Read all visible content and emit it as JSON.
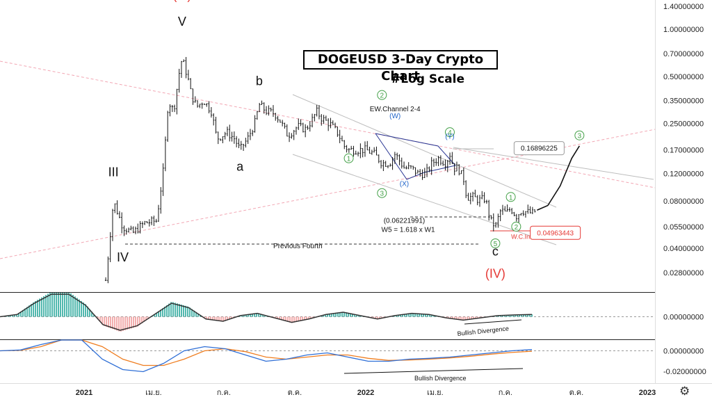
{
  "chart_data": {
    "type": "candlestick",
    "title": "DOGEUSD 3-Day Crypto Chart",
    "subtitle": "#Log Scale",
    "price_axis": {
      "scale": "log",
      "ticks": [
        "1.40000000",
        "1.00000000",
        "0.70000000",
        "0.50000000",
        "0.35000000",
        "0.25000000",
        "0.17000000",
        "0.12000000",
        "0.08000000",
        "0.05500000",
        "0.04000000",
        "0.02800000"
      ]
    },
    "time_axis": {
      "ticks": [
        "2021",
        "เม.ย.",
        "ก.ค.",
        "ต.ค.",
        "2022",
        "เม.ย.",
        "ก.ค.",
        "ต.ค.",
        "2023"
      ]
    },
    "price_series": [
      {
        "d": "2021-01-29",
        "p": 0.025
      },
      {
        "d": "2021-02-08",
        "p": 0.08
      },
      {
        "d": "2021-02-20",
        "p": 0.055
      },
      {
        "d": "2021-03-05",
        "p": 0.05
      },
      {
        "d": "2021-03-20",
        "p": 0.058
      },
      {
        "d": "2021-04-05",
        "p": 0.06
      },
      {
        "d": "2021-04-14",
        "p": 0.13
      },
      {
        "d": "2021-04-20",
        "p": 0.35
      },
      {
        "d": "2021-04-27",
        "p": 0.3
      },
      {
        "d": "2021-05-05",
        "p": 0.56
      },
      {
        "d": "2021-05-08",
        "p": 0.65
      },
      {
        "d": "2021-05-15",
        "p": 0.5
      },
      {
        "d": "2021-05-20",
        "p": 0.38
      },
      {
        "d": "2021-05-27",
        "p": 0.32
      },
      {
        "d": "2021-06-05",
        "p": 0.35
      },
      {
        "d": "2021-06-15",
        "p": 0.3
      },
      {
        "d": "2021-06-22",
        "p": 0.2
      },
      {
        "d": "2021-07-05",
        "p": 0.22
      },
      {
        "d": "2021-07-15",
        "p": 0.2
      },
      {
        "d": "2021-07-22",
        "p": 0.17
      },
      {
        "d": "2021-08-01",
        "p": 0.2
      },
      {
        "d": "2021-08-10",
        "p": 0.25
      },
      {
        "d": "2021-08-16",
        "p": 0.33
      },
      {
        "d": "2021-08-25",
        "p": 0.3
      },
      {
        "d": "2021-09-05",
        "p": 0.29
      },
      {
        "d": "2021-09-12",
        "p": 0.26
      },
      {
        "d": "2021-09-22",
        "p": 0.21
      },
      {
        "d": "2021-10-05",
        "p": 0.24
      },
      {
        "d": "2021-10-15",
        "p": 0.23
      },
      {
        "d": "2021-10-25",
        "p": 0.27
      },
      {
        "d": "2021-10-29",
        "p": 0.3
      },
      {
        "d": "2021-11-05",
        "p": 0.27
      },
      {
        "d": "2021-11-15",
        "p": 0.25
      },
      {
        "d": "2021-11-25",
        "p": 0.22
      },
      {
        "d": "2021-12-04",
        "p": 0.18
      },
      {
        "d": "2021-12-10",
        "p": 0.17
      },
      {
        "d": "2021-12-20",
        "p": 0.17
      },
      {
        "d": "2022-01-01",
        "p": 0.17
      },
      {
        "d": "2022-01-12",
        "p": 0.16
      },
      {
        "d": "2022-01-22",
        "p": 0.14
      },
      {
        "d": "2022-02-01",
        "p": 0.14
      },
      {
        "d": "2022-02-08",
        "p": 0.16
      },
      {
        "d": "2022-02-20",
        "p": 0.13
      },
      {
        "d": "2022-03-01",
        "p": 0.13
      },
      {
        "d": "2022-03-10",
        "p": 0.12
      },
      {
        "d": "2022-03-20",
        "p": 0.12
      },
      {
        "d": "2022-03-28",
        "p": 0.14
      },
      {
        "d": "2022-04-05",
        "p": 0.15
      },
      {
        "d": "2022-04-15",
        "p": 0.14
      },
      {
        "d": "2022-04-20",
        "p": 0.16
      },
      {
        "d": "2022-04-25",
        "p": 0.13
      },
      {
        "d": "2022-05-01",
        "p": 0.13
      },
      {
        "d": "2022-05-08",
        "p": 0.11
      },
      {
        "d": "2022-05-12",
        "p": 0.085
      },
      {
        "d": "2022-05-20",
        "p": 0.085
      },
      {
        "d": "2022-05-28",
        "p": 0.081
      },
      {
        "d": "2022-06-05",
        "p": 0.083
      },
      {
        "d": "2022-06-12",
        "p": 0.06
      },
      {
        "d": "2022-06-18",
        "p": 0.055
      },
      {
        "d": "2022-06-25",
        "p": 0.07
      },
      {
        "d": "2022-07-02",
        "p": 0.067
      },
      {
        "d": "2022-07-08",
        "p": 0.072
      },
      {
        "d": "2022-07-15",
        "p": 0.064
      },
      {
        "d": "2022-07-22",
        "p": 0.07
      },
      {
        "d": "2022-07-29",
        "p": 0.068
      },
      {
        "d": "2022-08-05",
        "p": 0.067
      },
      {
        "d": "2022-08-11",
        "p": 0.07
      }
    ],
    "projection": [
      {
        "d": "2022-08-11",
        "p": 0.07
      },
      {
        "d": "2022-08-25",
        "p": 0.075
      },
      {
        "d": "2022-09-10",
        "p": 0.1
      },
      {
        "d": "2022-09-25",
        "p": 0.15
      },
      {
        "d": "2022-10-05",
        "p": 0.18
      }
    ],
    "wave_labels": [
      {
        "text": "(III)",
        "color": "#e53935",
        "d": "2021-05-08",
        "p": 1.55
      },
      {
        "text": "V",
        "color": "#111111",
        "d": "2021-05-08",
        "p": 1.05
      },
      {
        "text": "III",
        "color": "#111111",
        "d": "2021-02-08",
        "p": 0.115
      },
      {
        "text": "IV",
        "color": "#111111",
        "d": "2021-02-20",
        "p": 0.033
      },
      {
        "text": "a",
        "color": "#111111",
        "d": "2021-07-22",
        "p": 0.125
      },
      {
        "text": "b",
        "color": "#111111",
        "d": "2021-08-16",
        "p": 0.44
      },
      {
        "text": "c",
        "color": "#111111",
        "d": "2022-06-18",
        "p": 0.036
      },
      {
        "text": "(IV)",
        "color": "#e53935",
        "d": "2022-06-18",
        "p": 0.026
      }
    ],
    "circled_labels": [
      {
        "text": "1",
        "d": "2021-12-10",
        "p": 0.15
      },
      {
        "text": "2",
        "d": "2022-01-22",
        "p": 0.38
      },
      {
        "text": "3",
        "d": "2022-01-22",
        "p": 0.09
      },
      {
        "text": "4",
        "d": "2022-04-20",
        "p": 0.22
      },
      {
        "text": "5",
        "d": "2022-06-18",
        "p": 0.043
      },
      {
        "text": "1",
        "d": "2022-07-08",
        "p": 0.085
      },
      {
        "text": "2",
        "d": "2022-07-15",
        "p": 0.055
      },
      {
        "text": "3",
        "d": "2022-10-05",
        "p": 0.21
      }
    ],
    "blue_labels": [
      {
        "text": "(W)",
        "d": "2022-02-08",
        "p": 0.27
      },
      {
        "text": "(X)",
        "d": "2022-02-20",
        "p": 0.1
      },
      {
        "text": "(Y)",
        "d": "2022-04-20",
        "p": 0.2
      }
    ],
    "annotations": [
      {
        "text": "EW.Channel 2-4",
        "d": "2022-02-08",
        "p": 0.3
      },
      {
        "text": "(0.06221991)",
        "d": "2022-02-20",
        "p": 0.058
      },
      {
        "text": "W5 = 1.618 x W1",
        "d": "2022-02-25",
        "p": 0.051
      },
      {
        "text": "Previous Fourth",
        "d": "2021-10-05",
        "p": 0.04
      },
      {
        "text": "W.C.Invalid",
        "d": "2022-07-29",
        "p": 0.046
      }
    ],
    "price_boxes": [
      {
        "text": "0.16896225",
        "kind": "neutral",
        "d": "2022-07-15",
        "p": 0.175
      },
      {
        "text": "0.04963443",
        "kind": "invalid",
        "d": "2022-08-05",
        "p": 0.0505
      }
    ],
    "oscillator": {
      "zero_label": "0.00000000",
      "values": [
        0,
        0.1,
        0.6,
        1,
        1,
        0.5,
        -0.35,
        -0.6,
        -0.4,
        0.1,
        0.6,
        0.4,
        -0.1,
        -0.2,
        0.05,
        0.15,
        -0.05,
        -0.25,
        -0.1,
        0.1,
        0.2,
        0.05,
        -0.1,
        0.05,
        0.15,
        0.1,
        -0.05,
        -0.15,
        -0.05,
        0.05,
        0.08,
        0.1
      ],
      "annotation": "Bullish Divergence"
    },
    "macd": {
      "ticks": [
        "0.00000000",
        "-0.02000000"
      ],
      "macd_line": [
        0,
        0.02,
        0.15,
        0.55,
        0.4,
        -0.2,
        -0.45,
        -0.5,
        -0.3,
        0.0,
        0.1,
        0.05,
        -0.1,
        -0.25,
        -0.2,
        -0.1,
        -0.05,
        -0.15,
        -0.25,
        -0.25,
        -0.2,
        -0.18,
        -0.15,
        -0.1,
        -0.05,
        0,
        0.03
      ],
      "signal_line": [
        0,
        0.01,
        0.1,
        0.35,
        0.4,
        0.1,
        -0.2,
        -0.35,
        -0.35,
        -0.2,
        0,
        0.05,
        -0.02,
        -0.15,
        -0.2,
        -0.15,
        -0.1,
        -0.1,
        -0.18,
        -0.23,
        -0.22,
        -0.2,
        -0.17,
        -0.13,
        -0.08,
        -0.04,
        -0.01
      ],
      "annotation": "Bullish Divergence"
    }
  }
}
